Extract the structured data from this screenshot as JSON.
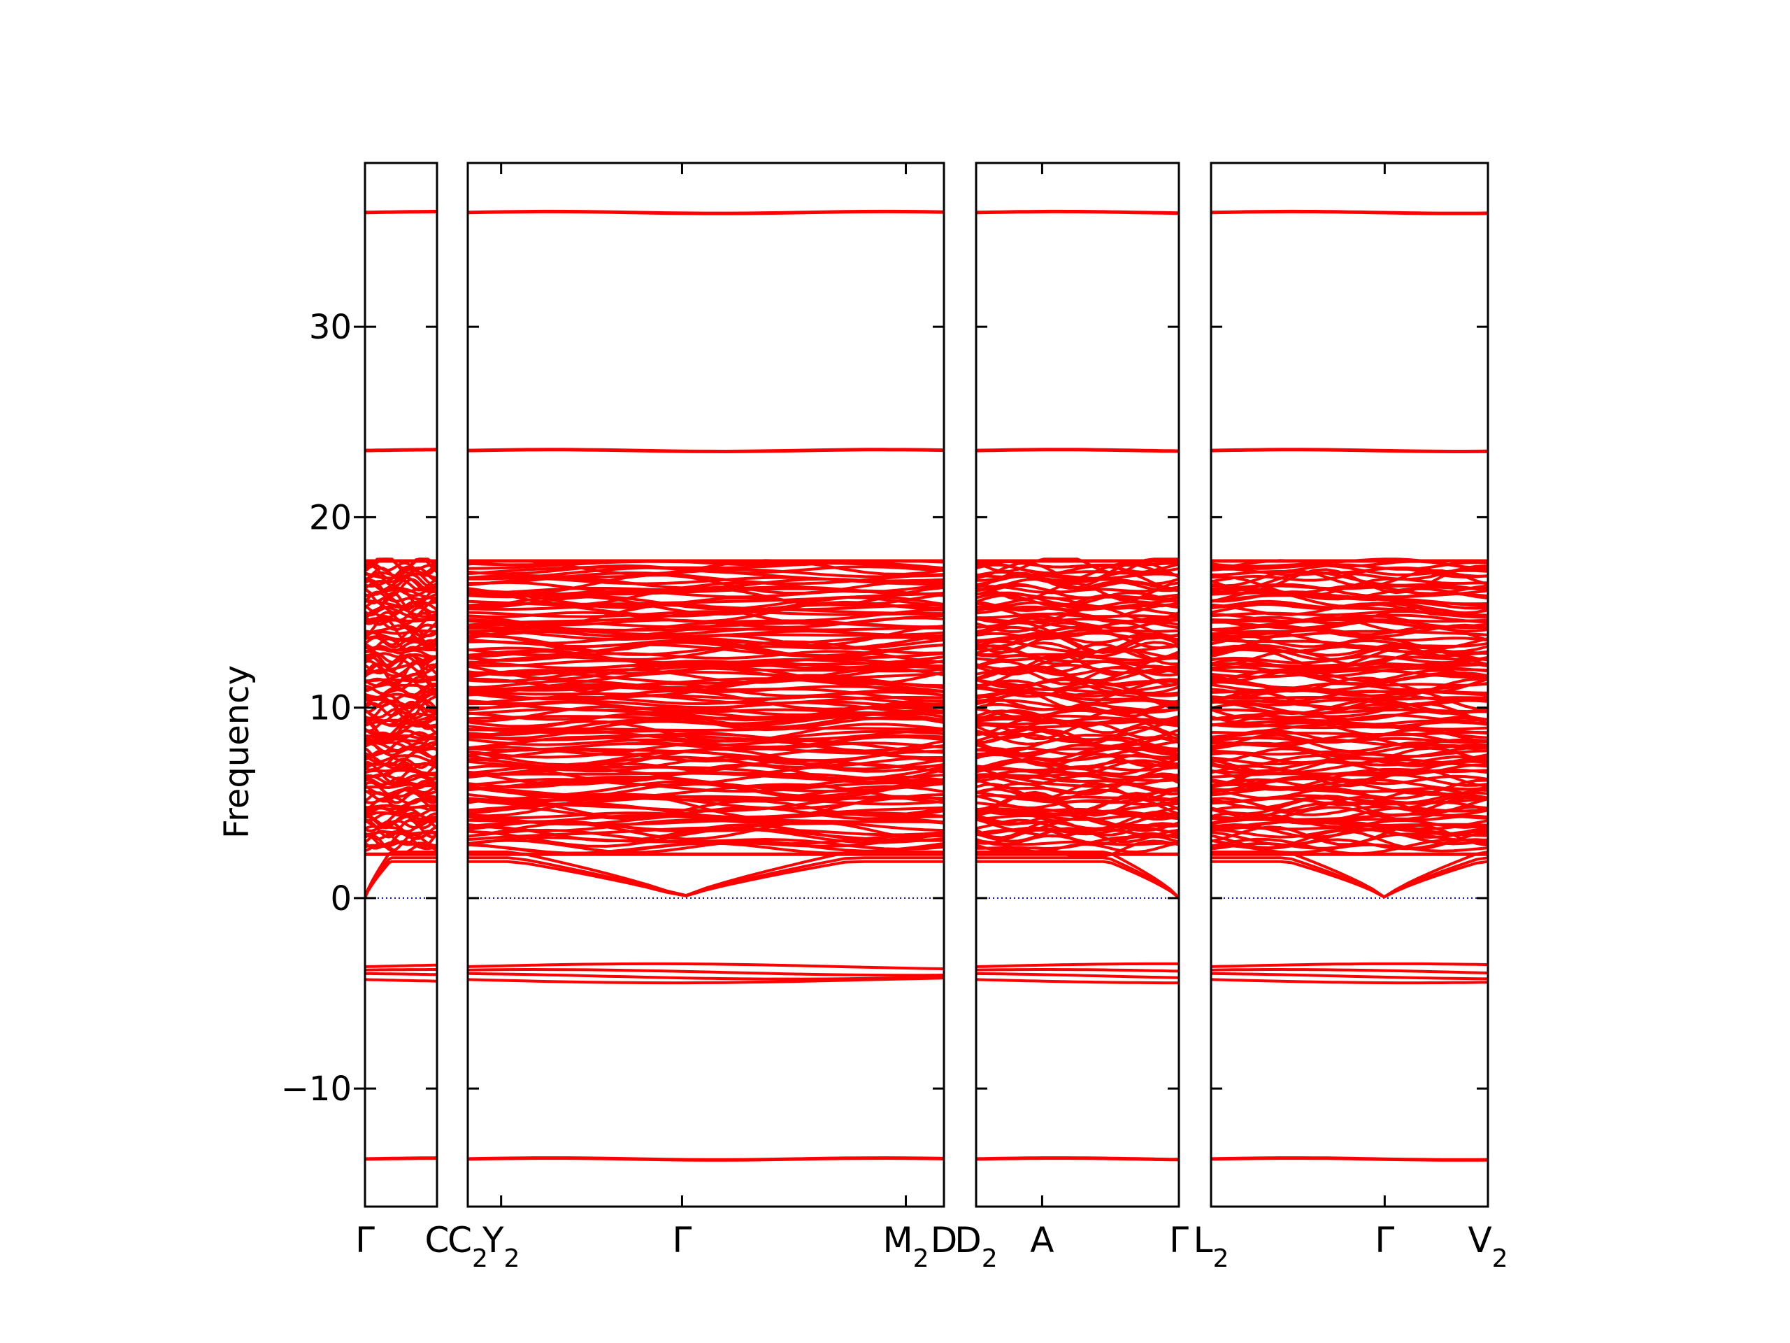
{
  "chart_data": {
    "type": "line",
    "title": "",
    "ylabel": "Frequency",
    "ylim": [
      -16.2,
      38.6
    ],
    "yticks": [
      -10,
      0,
      10,
      20,
      30
    ],
    "ytick_labels": [
      "−10",
      "0",
      "10",
      "20",
      "30"
    ],
    "grid": false,
    "zero_line": {
      "y": 0,
      "color": "#0000cc",
      "style": "dotted"
    },
    "series_color": "#ff0000",
    "segments": [
      {
        "id": "seg1",
        "path": [
          "Γ",
          "C"
        ],
        "xlim": [
          0,
          0.142
        ],
        "xticks": [
          0,
          0.142
        ],
        "xtick_labels": [
          {
            "main": "Γ",
            "sub": ""
          },
          {
            "main": "C",
            "sub": ""
          }
        ]
      },
      {
        "id": "seg2",
        "path": [
          "C2",
          "Y2",
          "Γ",
          "M2",
          "D"
        ],
        "xlim": [
          0,
          1.0
        ],
        "xticks": [
          0.0,
          0.07,
          0.45,
          0.92,
          1.0
        ],
        "xtick_labels": [
          {
            "main": "C",
            "sub": "2"
          },
          {
            "main": "Y",
            "sub": "2"
          },
          {
            "main": "Γ",
            "sub": ""
          },
          {
            "main": "M",
            "sub": "2"
          },
          {
            "main": "D",
            "sub": ""
          }
        ]
      },
      {
        "id": "seg3",
        "path": [
          "D2",
          "A",
          "Γ"
        ],
        "xlim": [
          0,
          0.43
        ],
        "xticks": [
          0,
          0.14,
          0.43
        ],
        "xtick_labels": [
          {
            "main": "D",
            "sub": "2"
          },
          {
            "main": "A",
            "sub": ""
          },
          {
            "main": "Γ",
            "sub": ""
          }
        ]
      },
      {
        "id": "seg4",
        "path": [
          "L2",
          "Γ",
          "V2"
        ],
        "xlim": [
          0,
          0.59
        ],
        "xticks": [
          0,
          0.37,
          0.59
        ],
        "xtick_labels": [
          {
            "main": "L",
            "sub": "2"
          },
          {
            "main": "Γ",
            "sub": ""
          },
          {
            "main": "V",
            "sub": "2"
          }
        ]
      }
    ],
    "flat_bands": [
      36.0,
      23.5,
      -13.7
    ],
    "negative_band_cluster": [
      -3.6,
      -3.9,
      -4.1,
      -4.3
    ],
    "dense_band_region": [
      2.0,
      17.8
    ],
    "acoustic_zero_points": [
      "Γ"
    ]
  }
}
